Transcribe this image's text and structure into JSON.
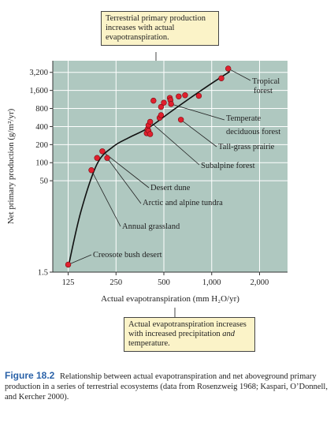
{
  "colors": {
    "plot_bg": "#afc8c0",
    "point": "#e0202e",
    "curve": "#111111",
    "callout_bg": "#fbf3c8",
    "caption_label": "#2a62a8"
  },
  "callouts": {
    "top": "Terrestrial primary production increases with actual evapotranspiration.",
    "bottom_line1": "Actual evapotranspiration increases with increased",
    "bottom_line2": "precipitation ",
    "bottom_em": "and",
    "bottom_line3": " temperature."
  },
  "caption": {
    "label": "Figure 18.2",
    "text": "Relationship between actual evapotranspiration and net aboveground primary production in a series of terrestrial ecosystems (data from Rosenzweig 1968; Kaspari, O’Donnell, and Kercher 2000)."
  },
  "chart_data": {
    "type": "scatter",
    "title": "",
    "xlabel": "Actual evapotranspiration (mm H₂O/yr)",
    "ylabel": "Net primary production (g/m²/yr)",
    "x_scale": "log",
    "y_scale": "log",
    "xlim": [
      100,
      3000
    ],
    "ylim": [
      1.5,
      5000
    ],
    "x_ticks": [
      {
        "value": 125,
        "label": "125"
      },
      {
        "value": 250,
        "label": "250"
      },
      {
        "value": 500,
        "label": "500"
      },
      {
        "value": 1000,
        "label": "1,000"
      },
      {
        "value": 2000,
        "label": "2,000"
      }
    ],
    "y_ticks": [
      {
        "value": 1.5,
        "label": "1.5"
      },
      {
        "value": 50,
        "label": "50"
      },
      {
        "value": 100,
        "label": "100"
      },
      {
        "value": 200,
        "label": "200"
      },
      {
        "value": 400,
        "label": "400"
      },
      {
        "value": 800,
        "label": "800"
      },
      {
        "value": 1600,
        "label": "1,600"
      },
      {
        "value": 3200,
        "label": "3,200"
      }
    ],
    "points": [
      {
        "x": 125,
        "y": 2
      },
      {
        "x": 175,
        "y": 75
      },
      {
        "x": 190,
        "y": 120
      },
      {
        "x": 205,
        "y": 155
      },
      {
        "x": 220,
        "y": 120
      },
      {
        "x": 390,
        "y": 310
      },
      {
        "x": 395,
        "y": 360
      },
      {
        "x": 400,
        "y": 340
      },
      {
        "x": 400,
        "y": 420
      },
      {
        "x": 410,
        "y": 480
      },
      {
        "x": 410,
        "y": 300
      },
      {
        "x": 430,
        "y": 1080
      },
      {
        "x": 470,
        "y": 560
      },
      {
        "x": 480,
        "y": 620
      },
      {
        "x": 480,
        "y": 850
      },
      {
        "x": 500,
        "y": 1000
      },
      {
        "x": 545,
        "y": 1200
      },
      {
        "x": 550,
        "y": 1100
      },
      {
        "x": 555,
        "y": 950
      },
      {
        "x": 620,
        "y": 1270
      },
      {
        "x": 640,
        "y": 520
      },
      {
        "x": 680,
        "y": 1330
      },
      {
        "x": 830,
        "y": 1300
      },
      {
        "x": 1150,
        "y": 2550
      },
      {
        "x": 1270,
        "y": 3700
      }
    ],
    "trend": {
      "x": [
        125,
        150,
        190,
        240,
        300,
        400,
        550,
        750,
        1000,
        1300
      ],
      "y": [
        1.8,
        15,
        95,
        185,
        260,
        380,
        700,
        1250,
        2100,
        3300
      ]
    },
    "annotations": [
      {
        "text": "Tropical",
        "text2": "forest",
        "x": 1270,
        "y": 3700
      },
      {
        "text": "Temperate",
        "text2": "deciduous forest",
        "x": 555,
        "y": 950
      },
      {
        "text": "Tall-grass prairie",
        "x": 640,
        "y": 520
      },
      {
        "text": "Subalpine forest",
        "x": 410,
        "y": 480
      },
      {
        "text": "Desert dune",
        "x": 205,
        "y": 155
      },
      {
        "text": "Arctic and alpine tundra",
        "x": 220,
        "y": 120
      },
      {
        "text": "Annual grassland",
        "x": 175,
        "y": 75
      },
      {
        "text": "Creosote bush desert",
        "x": 125,
        "y": 2
      }
    ]
  }
}
